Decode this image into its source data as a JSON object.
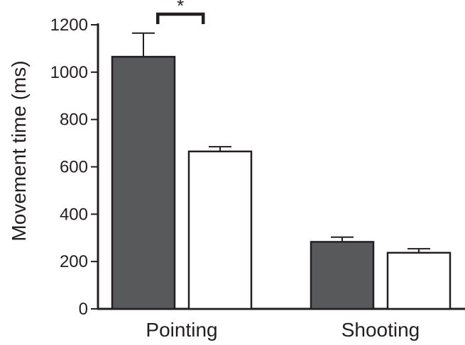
{
  "chart_data": {
    "type": "bar",
    "categories": [
      "Pointing",
      "Shooting"
    ],
    "series": [
      {
        "values": [
          1065,
          283
        ],
        "errors": [
          100,
          20
        ],
        "color": "#58595b"
      },
      {
        "values": [
          665,
          237
        ],
        "errors": [
          20,
          17
        ],
        "color": "#ffffff"
      }
    ],
    "xlabel": "",
    "ylabel": "Movement time (ms)",
    "ylim": [
      0,
      1200
    ],
    "yticks": [
      0,
      200,
      400,
      600,
      800,
      1000,
      1200
    ],
    "grid": false,
    "legend": "none",
    "significance": [
      {
        "category_index": 0,
        "between_series": [
          0,
          1
        ],
        "label": "*"
      }
    ],
    "colors": {
      "axis": "#231f20",
      "bar_outline": "#231f20"
    }
  }
}
